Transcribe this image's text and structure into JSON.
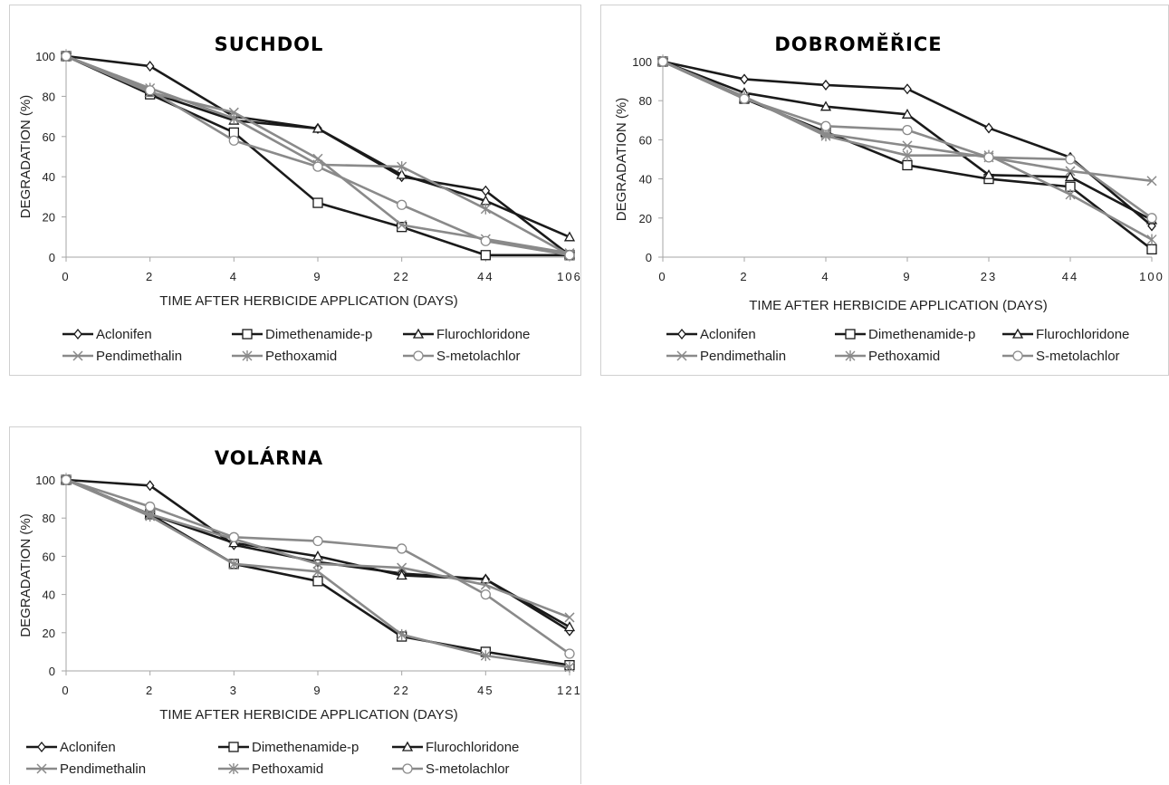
{
  "colors": {
    "dark": "#1a1a1a",
    "gray": "#8a8a8a",
    "axis": "#a6a6a6"
  },
  "chart_data": [
    {
      "type": "line",
      "title": "SUCHDOL",
      "xlabel": "TIME AFTER HERBICIDE APPLICATION (DAYS)",
      "ylabel": "DEGRADATION (%)",
      "ylim": [
        0,
        100
      ],
      "yticks": [
        "0",
        "20",
        "40",
        "60",
        "80",
        "100"
      ],
      "categories": [
        "0",
        "2",
        "4",
        "9",
        "22",
        "44",
        "106"
      ],
      "legend_position": "bottom",
      "series": [
        {
          "name": "Aclonifen",
          "color": "#1a1a1a",
          "marker": "diamond",
          "values": [
            100,
            95,
            70,
            64,
            40,
            33,
            1
          ]
        },
        {
          "name": "Dimethenamide-p",
          "color": "#1a1a1a",
          "marker": "square",
          "values": [
            100,
            81,
            62,
            27,
            15,
            1,
            1
          ]
        },
        {
          "name": "Flurochloridone",
          "color": "#1a1a1a",
          "marker": "triangle",
          "values": [
            100,
            82,
            68,
            64,
            41,
            28,
            10
          ]
        },
        {
          "name": "Pendimethalin",
          "color": "#8a8a8a",
          "marker": "x",
          "values": [
            100,
            82,
            72,
            49,
            16,
            9,
            2
          ]
        },
        {
          "name": "Pethoxamid",
          "color": "#8a8a8a",
          "marker": "star",
          "values": [
            100,
            84,
            69,
            46,
            45,
            24,
            1
          ]
        },
        {
          "name": "S-metolachlor",
          "color": "#8a8a8a",
          "marker": "circle",
          "values": [
            100,
            83,
            58,
            45,
            26,
            8,
            1
          ]
        }
      ]
    },
    {
      "type": "line",
      "title": "DOBROMĚŘICE",
      "xlabel": "TIME AFTER HERBICIDE APPLICATION (DAYS)",
      "ylabel": "DEGRADATION (%)",
      "ylim": [
        0,
        100
      ],
      "yticks": [
        "0",
        "20",
        "40",
        "60",
        "80",
        "100"
      ],
      "categories": [
        "0",
        "2",
        "4",
        "9",
        "23",
        "44",
        "100"
      ],
      "legend_position": "bottom",
      "series": [
        {
          "name": "Aclonifen",
          "color": "#1a1a1a",
          "marker": "diamond",
          "values": [
            100,
            91,
            88,
            86,
            66,
            51,
            16
          ]
        },
        {
          "name": "Dimethenamide-p",
          "color": "#1a1a1a",
          "marker": "square",
          "values": [
            100,
            81,
            64,
            47,
            40,
            36,
            4
          ]
        },
        {
          "name": "Flurochloridone",
          "color": "#1a1a1a",
          "marker": "triangle",
          "values": [
            100,
            84,
            77,
            73,
            42,
            41,
            19
          ]
        },
        {
          "name": "Pendimethalin",
          "color": "#8a8a8a",
          "marker": "x",
          "values": [
            100,
            82,
            63,
            57,
            51,
            44,
            39
          ]
        },
        {
          "name": "Pethoxamid",
          "color": "#8a8a8a",
          "marker": "star",
          "values": [
            100,
            82,
            62,
            52,
            52,
            32,
            9
          ]
        },
        {
          "name": "S-metolachlor",
          "color": "#8a8a8a",
          "marker": "circle",
          "values": [
            100,
            81,
            67,
            65,
            51,
            50,
            20
          ]
        }
      ]
    },
    {
      "type": "line",
      "title": "VOLÁRNA",
      "xlabel": "TIME AFTER HERBICIDE APPLICATION (DAYS)",
      "ylabel": "DEGRADATION (%)",
      "ylim": [
        0,
        100
      ],
      "yticks": [
        "0",
        "20",
        "40",
        "60",
        "80",
        "100"
      ],
      "categories": [
        "0",
        "2",
        "3",
        "9",
        "22",
        "45",
        "121"
      ],
      "legend_position": "bottom",
      "series": [
        {
          "name": "Aclonifen",
          "color": "#1a1a1a",
          "marker": "diamond",
          "values": [
            100,
            97,
            66,
            57,
            51,
            48,
            21
          ]
        },
        {
          "name": "Dimethenamide-p",
          "color": "#1a1a1a",
          "marker": "square",
          "values": [
            100,
            82,
            56,
            47,
            18,
            10,
            3
          ]
        },
        {
          "name": "Flurochloridone",
          "color": "#1a1a1a",
          "marker": "triangle",
          "values": [
            100,
            82,
            67,
            60,
            50,
            48,
            23
          ]
        },
        {
          "name": "Pendimethalin",
          "color": "#8a8a8a",
          "marker": "x",
          "values": [
            100,
            82,
            69,
            56,
            54,
            45,
            28
          ]
        },
        {
          "name": "Pethoxamid",
          "color": "#8a8a8a",
          "marker": "star",
          "values": [
            100,
            81,
            56,
            52,
            19,
            8,
            2
          ]
        },
        {
          "name": "S-metolachlor",
          "color": "#8a8a8a",
          "marker": "circle",
          "values": [
            100,
            86,
            70,
            68,
            64,
            40,
            9
          ]
        }
      ]
    }
  ]
}
